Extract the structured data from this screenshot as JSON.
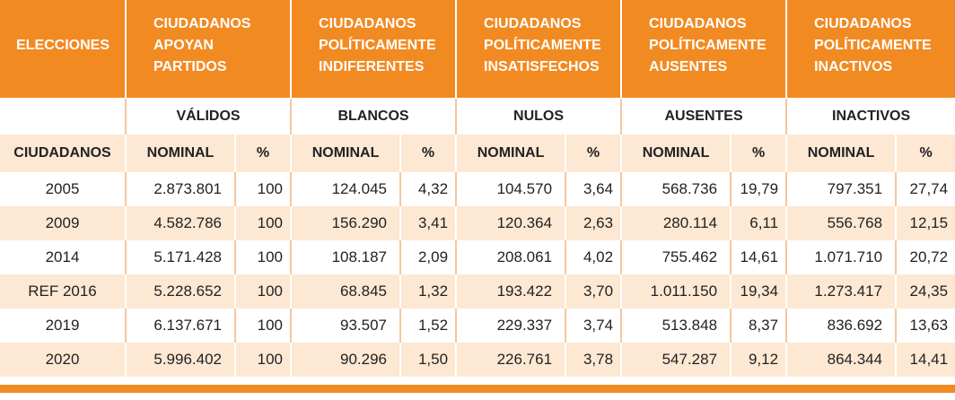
{
  "colors": {
    "header": "#f28a22",
    "band": "#fde8d4"
  },
  "header": {
    "elecciones": "ELECCIONES",
    "groups": [
      {
        "line1": "CIUDADANOS",
        "line2": "APOYAN",
        "line3": "PARTIDOS"
      },
      {
        "line1": "CIUDADANOS",
        "line2": "POLÍTICAMENTE",
        "line3": "INDIFERENTES"
      },
      {
        "line1": "CIUDADANOS",
        "line2": "POLÍTICAMENTE",
        "line3": "INSATISFECHOS"
      },
      {
        "line1": "CIUDADANOS",
        "line2": "POLÍTICAMENTE",
        "line3": "AUSENTES"
      },
      {
        "line1": "CIUDADANOS",
        "line2": "POLÍTICAMENTE",
        "line3": "INACTIVOS"
      }
    ]
  },
  "subheader": [
    "VÁLIDOS",
    "BLANCOS",
    "NULOS",
    "AUSENTES",
    "INACTIVOS"
  ],
  "colheader": {
    "first": "CIUDADANOS",
    "nominal": "NOMINAL",
    "pct": "%"
  },
  "rows": [
    {
      "year": "2005",
      "cells": [
        "2.873.801",
        "100",
        "124.045",
        "4,32",
        "104.570",
        "3,64",
        "568.736",
        "19,79",
        "797.351",
        "27,74"
      ]
    },
    {
      "year": "2009",
      "cells": [
        "4.582.786",
        "100",
        "156.290",
        "3,41",
        "120.364",
        "2,63",
        "280.114",
        "6,11",
        "556.768",
        "12,15"
      ]
    },
    {
      "year": "2014",
      "cells": [
        "5.171.428",
        "100",
        "108.187",
        "2,09",
        "208.061",
        "4,02",
        "755.462",
        "14,61",
        "1.071.710",
        "20,72"
      ]
    },
    {
      "year": "REF 2016",
      "cells": [
        "5.228.652",
        "100",
        "68.845",
        "1,32",
        "193.422",
        "3,70",
        "1.011.150",
        "19,34",
        "1.273.417",
        "24,35"
      ]
    },
    {
      "year": "2019",
      "cells": [
        "6.137.671",
        "100",
        "93.507",
        "1,52",
        "229.337",
        "3,74",
        "513.848",
        "8,37",
        "836.692",
        "13,63"
      ]
    },
    {
      "year": "2020",
      "cells": [
        "5.996.402",
        "100",
        "90.296",
        "1,50",
        "226.761",
        "3,78",
        "547.287",
        "9,12",
        "864.344",
        "14,41"
      ]
    }
  ]
}
